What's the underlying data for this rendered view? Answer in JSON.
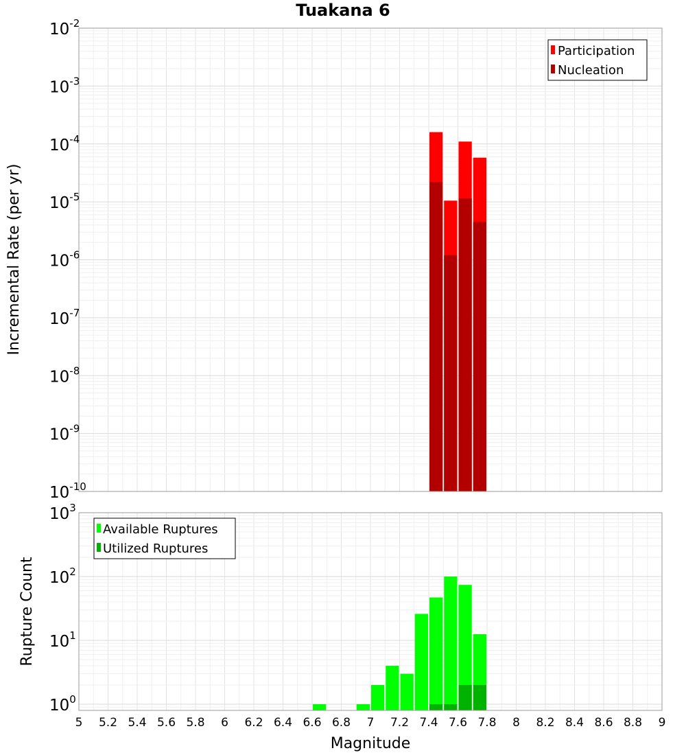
{
  "chart_data": [
    {
      "id": "rates",
      "type": "bar",
      "title": "Tuakana 6",
      "xlabel": "",
      "ylabel": "Incremental Rate (per yr)",
      "yscale": "log",
      "ylim": [
        1e-10,
        0.01
      ],
      "xlim": [
        5,
        9
      ],
      "bin_width": 0.1,
      "y_ticks": [
        {
          "base": "10",
          "exp": "-10"
        },
        {
          "base": "10",
          "exp": "-9"
        },
        {
          "base": "10",
          "exp": "-8"
        },
        {
          "base": "10",
          "exp": "-7"
        },
        {
          "base": "10",
          "exp": "-6"
        },
        {
          "base": "10",
          "exp": "-5"
        },
        {
          "base": "10",
          "exp": "-4"
        },
        {
          "base": "10",
          "exp": "-3"
        },
        {
          "base": "10",
          "exp": "-2"
        }
      ],
      "legend_position": "top-right",
      "series": [
        {
          "name": "Participation",
          "color": "#ff0000",
          "x": [
            7.45,
            7.55,
            7.65,
            7.75
          ],
          "values": [
            0.00016,
            1.05e-05,
            0.00011,
            5.8e-05
          ]
        },
        {
          "name": "Nucleation",
          "color": "#b20000",
          "x": [
            7.45,
            7.55,
            7.65,
            7.75
          ],
          "values": [
            2.2e-05,
            1.2e-06,
            1.15e-05,
            4.5e-06
          ]
        }
      ]
    },
    {
      "id": "counts",
      "type": "bar",
      "title": "",
      "xlabel": "Magnitude",
      "ylabel": "Rupture Count",
      "yscale": "log",
      "ylim": [
        0.8,
        1000
      ],
      "xlim": [
        5,
        9
      ],
      "bin_width": 0.1,
      "x_ticks": [
        "5",
        "5.2",
        "5.4",
        "5.6",
        "5.8",
        "6",
        "6.2",
        "6.4",
        "6.6",
        "6.8",
        "7",
        "7.2",
        "7.4",
        "7.6",
        "7.8",
        "8",
        "8.2",
        "8.4",
        "8.6",
        "8.8",
        "9"
      ],
      "y_ticks": [
        {
          "base": "10",
          "exp": "0"
        },
        {
          "base": "10",
          "exp": "1"
        },
        {
          "base": "10",
          "exp": "2"
        },
        {
          "base": "10",
          "exp": "3"
        }
      ],
      "legend_position": "top-left",
      "series": [
        {
          "name": "Available Ruptures",
          "color": "#00ff00",
          "x": [
            6.65,
            6.95,
            7.05,
            7.15,
            7.25,
            7.35,
            7.45,
            7.55,
            7.65,
            7.75
          ],
          "values": [
            1,
            1,
            2,
            4,
            3,
            26,
            47,
            100,
            74,
            12.5
          ]
        },
        {
          "name": "Utilized Ruptures",
          "color": "#00b200",
          "x": [
            7.45,
            7.55,
            7.65,
            7.75
          ],
          "values": [
            1,
            1,
            2,
            2
          ]
        }
      ]
    }
  ]
}
